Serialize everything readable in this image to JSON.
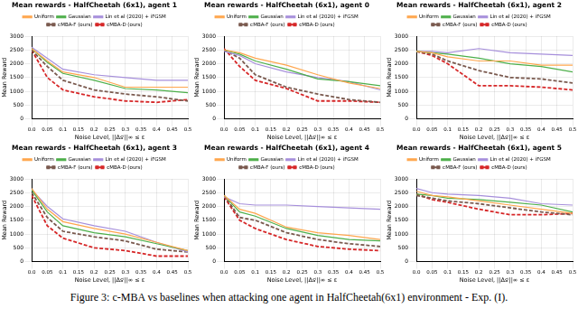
{
  "chart_data": [
    {
      "type": "line",
      "title": "Mean rewards - HalfCheetah (6x1), agent 1",
      "x_label": "Noise Level, ||Δsⁱ||∞ ≤ ε",
      "y_label": "Mean Reward",
      "x": [
        0,
        0.05,
        0.1,
        0.2,
        0.3,
        0.4,
        0.5
      ],
      "xlim": [
        0,
        0.5
      ],
      "xticks": [
        {
          "value": 0,
          "label": "0.0"
        },
        0.05,
        0.1,
        0.15,
        0.2,
        0.25,
        0.3,
        0.35,
        0.4,
        0.45,
        0.5
      ],
      "ylim": [
        0,
        3000
      ],
      "yticks": [
        0,
        500,
        1000,
        1500,
        2000,
        2500,
        3000
      ],
      "grid": true,
      "legend": "top",
      "series": [
        {
          "name": "Uniform",
          "color": "#ffa64d",
          "line_style": "solid",
          "values": [
            2550,
            2100,
            1700,
            1500,
            1150,
            1150,
            1150
          ]
        },
        {
          "name": "Gaussian",
          "color": "#4daf4a",
          "line_style": "solid",
          "values": [
            2550,
            2050,
            1650,
            1400,
            1100,
            1050,
            950
          ]
        },
        {
          "name": "Lin et al (2020) + iFGSM",
          "color": "#a68fdb",
          "line_style": "solid",
          "values": [
            2600,
            2200,
            1800,
            1600,
            1500,
            1400,
            1400
          ]
        },
        {
          "name": "cMBA-F (ours)",
          "color": "#7a5a4f",
          "line_style": "dashed",
          "values": [
            2500,
            1900,
            1400,
            1050,
            900,
            800,
            650
          ]
        },
        {
          "name": "cMBA-D (ours)",
          "color": "#d62728",
          "line_style": "dashed",
          "values": [
            2500,
            1500,
            1050,
            800,
            650,
            600,
            700
          ]
        }
      ]
    },
    {
      "type": "line",
      "title": "Mean rewards - HalfCheetah (6x1), agent 0",
      "x_label": "Noise Level, ||Δsⁱ||∞ ≤ ε",
      "y_label": "Mean Reward",
      "x": [
        0,
        0.05,
        0.1,
        0.2,
        0.3,
        0.4,
        0.5
      ],
      "xlim": [
        0,
        0.5
      ],
      "xticks": [
        {
          "value": 0,
          "label": "0.0"
        },
        0.05,
        0.1,
        0.15,
        0.2,
        0.25,
        0.3,
        0.35,
        0.4,
        0.45,
        0.5
      ],
      "ylim": [
        0,
        3000
      ],
      "yticks": [
        0,
        500,
        1000,
        1500,
        2000,
        2500,
        3000
      ],
      "grid": true,
      "legend": "top",
      "series": [
        {
          "name": "Uniform",
          "color": "#ffa64d",
          "line_style": "solid",
          "values": [
            2500,
            2400,
            2200,
            1950,
            1600,
            1300,
            1100
          ]
        },
        {
          "name": "Gaussian",
          "color": "#4daf4a",
          "line_style": "solid",
          "values": [
            2500,
            2350,
            2100,
            1800,
            1450,
            1350,
            1200
          ]
        },
        {
          "name": "Lin et al (2020) + iFGSM",
          "color": "#a68fdb",
          "line_style": "solid",
          "values": [
            2450,
            2300,
            2000,
            1700,
            1500,
            1350,
            1050
          ]
        },
        {
          "name": "cMBA-F (ours)",
          "color": "#7a5a4f",
          "line_style": "dashed",
          "values": [
            2500,
            2200,
            1600,
            1150,
            900,
            700,
            600
          ]
        },
        {
          "name": "cMBA-D (ours)",
          "color": "#d62728",
          "line_style": "dashed",
          "values": [
            2550,
            1900,
            1400,
            1100,
            650,
            650,
            600
          ]
        }
      ]
    },
    {
      "type": "line",
      "title": "Mean rewards - HalfCheetah (6x1), agent 2",
      "x_label": "Noise Level, ||Δsⁱ||∞ ≤ ε",
      "y_label": "Mean Reward",
      "x": [
        0,
        0.05,
        0.1,
        0.2,
        0.3,
        0.4,
        0.5
      ],
      "xlim": [
        0,
        0.5
      ],
      "xticks": [
        {
          "value": 0,
          "label": "0.0"
        },
        0.05,
        0.1,
        0.15,
        0.2,
        0.25,
        0.3,
        0.35,
        0.4,
        0.45,
        0.5
      ],
      "ylim": [
        0,
        3000
      ],
      "yticks": [
        0,
        500,
        1000,
        1500,
        2000,
        2500,
        3000
      ],
      "grid": true,
      "legend": "top",
      "series": [
        {
          "name": "Uniform",
          "color": "#ffa64d",
          "line_style": "solid",
          "values": [
            2450,
            2400,
            2250,
            2100,
            2100,
            1950,
            1950
          ]
        },
        {
          "name": "Gaussian",
          "color": "#4daf4a",
          "line_style": "solid",
          "values": [
            2450,
            2400,
            2350,
            2200,
            2000,
            1900,
            1700
          ]
        },
        {
          "name": "Lin et al (2020) + iFGSM",
          "color": "#a68fdb",
          "line_style": "solid",
          "values": [
            2450,
            2450,
            2400,
            2550,
            2400,
            2350,
            2300
          ]
        },
        {
          "name": "cMBA-F (ours)",
          "color": "#7a5a4f",
          "line_style": "dashed",
          "values": [
            2450,
            2350,
            2100,
            1750,
            1500,
            1450,
            1300
          ]
        },
        {
          "name": "cMBA-D (ours)",
          "color": "#d62728",
          "line_style": "dashed",
          "values": [
            2450,
            2300,
            2000,
            1200,
            1200,
            1150,
            1050
          ]
        }
      ]
    },
    {
      "type": "line",
      "title": "Mean rewards - HalfCheetah (6x1), agent 3",
      "x_label": "Noise Level, ||Δsⁱ||∞ ≤ ε",
      "y_label": "Mean Reward",
      "x": [
        0,
        0.05,
        0.1,
        0.2,
        0.3,
        0.4,
        0.5
      ],
      "xlim": [
        0,
        0.5
      ],
      "xticks": [
        {
          "value": 0,
          "label": "0.0"
        },
        0.05,
        0.1,
        0.15,
        0.2,
        0.25,
        0.3,
        0.35,
        0.4,
        0.45,
        0.5
      ],
      "ylim": [
        0,
        3000
      ],
      "yticks": [
        0,
        500,
        1000,
        1500,
        2000,
        2500,
        3000
      ],
      "grid": true,
      "legend": "top",
      "series": [
        {
          "name": "Uniform",
          "color": "#ffa64d",
          "line_style": "solid",
          "values": [
            2650,
            1900,
            1450,
            1200,
            1000,
            700,
            400
          ]
        },
        {
          "name": "Gaussian",
          "color": "#4daf4a",
          "line_style": "solid",
          "values": [
            2600,
            1800,
            1300,
            1050,
            900,
            650,
            400
          ]
        },
        {
          "name": "Lin et al (2020) + iFGSM",
          "color": "#a68fdb",
          "line_style": "solid",
          "values": [
            2600,
            2000,
            1550,
            1300,
            1100,
            700,
            350
          ]
        },
        {
          "name": "cMBA-F (ours)",
          "color": "#7a5a4f",
          "line_style": "dashed",
          "values": [
            2500,
            1600,
            1100,
            900,
            750,
            450,
            350
          ]
        },
        {
          "name": "cMBA-D (ours)",
          "color": "#d62728",
          "line_style": "dashed",
          "values": [
            2400,
            1300,
            850,
            500,
            400,
            200,
            200
          ]
        }
      ]
    },
    {
      "type": "line",
      "title": "Mean rewards - HalfCheetah (6x1), agent 4",
      "x_label": "Noise Level, ||Δsⁱ||∞ ≤ ε",
      "y_label": "Mean Reward",
      "x": [
        0,
        0.05,
        0.1,
        0.2,
        0.3,
        0.4,
        0.5
      ],
      "xlim": [
        0,
        0.5
      ],
      "xticks": [
        {
          "value": 0,
          "label": "0.0"
        },
        0.05,
        0.1,
        0.15,
        0.2,
        0.25,
        0.3,
        0.35,
        0.4,
        0.45,
        0.5
      ],
      "ylim": [
        0,
        3000
      ],
      "yticks": [
        0,
        500,
        1000,
        1500,
        2000,
        2500,
        3000
      ],
      "grid": true,
      "legend": "top",
      "series": [
        {
          "name": "Uniform",
          "color": "#ffa64d",
          "line_style": "solid",
          "values": [
            2400,
            1900,
            1750,
            1250,
            1050,
            950,
            800
          ]
        },
        {
          "name": "Gaussian",
          "color": "#4daf4a",
          "line_style": "solid",
          "values": [
            2400,
            1800,
            1650,
            1200,
            950,
            800,
            750
          ]
        },
        {
          "name": "Lin et al (2020) + iFGSM",
          "color": "#a68fdb",
          "line_style": "solid",
          "values": [
            2350,
            2100,
            2050,
            2050,
            2000,
            1950,
            1900
          ]
        },
        {
          "name": "cMBA-F (ours)",
          "color": "#7a5a4f",
          "line_style": "dashed",
          "values": [
            2400,
            1600,
            1500,
            1050,
            800,
            650,
            550
          ]
        },
        {
          "name": "cMBA-D (ours)",
          "color": "#d62728",
          "line_style": "dashed",
          "values": [
            2350,
            1500,
            1200,
            800,
            550,
            450,
            400
          ]
        }
      ]
    },
    {
      "type": "line",
      "title": "Mean rewards - HalfCheetah (6x1), agent 5",
      "x_label": "Noise Level, ||Δsⁱ||∞ ≤ ε",
      "y_label": "Mean Reward",
      "x": [
        0,
        0.05,
        0.1,
        0.2,
        0.3,
        0.4,
        0.5
      ],
      "xlim": [
        0,
        0.5
      ],
      "xticks": [
        {
          "value": 0,
          "label": "0.0"
        },
        0.05,
        0.1,
        0.15,
        0.2,
        0.25,
        0.3,
        0.35,
        0.4,
        0.45,
        0.5
      ],
      "ylim": [
        0,
        3000
      ],
      "yticks": [
        0,
        500,
        1000,
        1500,
        2000,
        2500,
        3000
      ],
      "grid": true,
      "legend": "top",
      "series": [
        {
          "name": "Uniform",
          "color": "#ffa64d",
          "line_style": "solid",
          "values": [
            2550,
            2400,
            2350,
            2200,
            2050,
            1900,
            1750
          ]
        },
        {
          "name": "Gaussian",
          "color": "#4daf4a",
          "line_style": "solid",
          "values": [
            2450,
            2400,
            2300,
            2250,
            2150,
            2050,
            1800
          ]
        },
        {
          "name": "Lin et al (2020) + iFGSM",
          "color": "#a68fdb",
          "line_style": "solid",
          "values": [
            2650,
            2500,
            2450,
            2400,
            2300,
            2100,
            2050
          ]
        },
        {
          "name": "cMBA-F (ours)",
          "color": "#7a5a4f",
          "line_style": "dashed",
          "values": [
            2400,
            2300,
            2200,
            2100,
            1950,
            1800,
            1700
          ]
        },
        {
          "name": "cMBA-D (ours)",
          "color": "#d62728",
          "line_style": "dashed",
          "values": [
            2450,
            2250,
            2150,
            1900,
            1700,
            1700,
            1750
          ]
        }
      ]
    }
  ],
  "caption": "Figure 3: c-MBA vs baselines when attacking one agent in HalfCheetah(6x1) environment - Exp. (I)."
}
